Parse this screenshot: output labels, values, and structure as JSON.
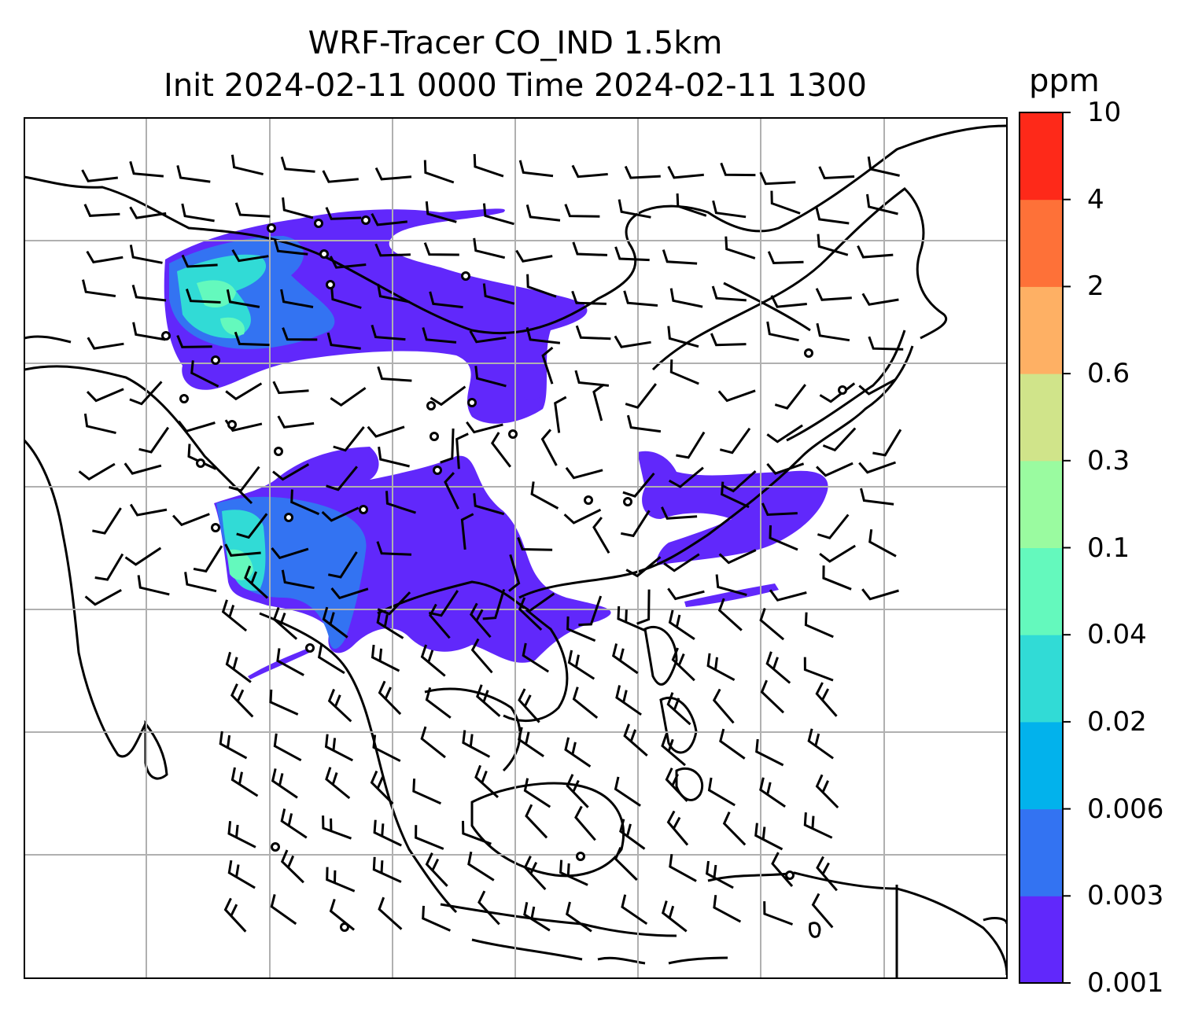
{
  "title_line1": "WRF-Tracer CO_IND 1.5km",
  "title_line2": "Init 2024-02-11 0000 Time 2024-02-11 1300",
  "colorbar": {
    "unit": "ppm",
    "levels": [
      "0.001",
      "0.003",
      "0.006",
      "0.02",
      "0.04",
      "0.1",
      "0.3",
      "0.6",
      "2",
      "4",
      "10"
    ],
    "colors": [
      "#6128fb",
      "#3373f2",
      "#02b2ec",
      "#31dbd6",
      "#64f9bd",
      "#9afba0",
      "#d0e48a",
      "#feb064",
      "#fe7138",
      "#fe2919"
    ]
  },
  "map": {
    "gridlines": true,
    "coastlines": true,
    "wind_barbs": true,
    "calm_wind_circles": true
  }
}
